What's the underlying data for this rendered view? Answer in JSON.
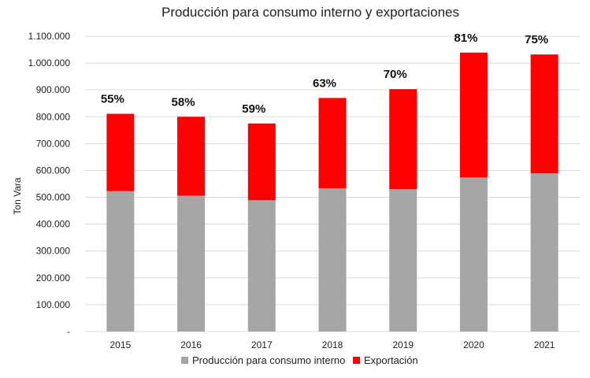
{
  "chart_data": {
    "type": "bar",
    "stacked": true,
    "title": "Producción para consumo interno y exportaciones",
    "xlabel": "",
    "ylabel": "Ton Vara",
    "categories": [
      "2015",
      "2016",
      "2017",
      "2018",
      "2019",
      "2020",
      "2021"
    ],
    "series": [
      {
        "name": "Producción para consumo interno",
        "color": "#a6a6a6",
        "values": [
          523000,
          506000,
          489000,
          534000,
          530000,
          574000,
          589000
        ]
      },
      {
        "name": "Exportación",
        "color": "#ff0000",
        "values": [
          288000,
          294000,
          286000,
          336000,
          373000,
          465000,
          443000
        ]
      }
    ],
    "bar_labels": [
      "55%",
      "58%",
      "59%",
      "63%",
      "70%",
      "81%",
      "75%"
    ],
    "ylim": [
      0,
      1100000
    ],
    "yticks": [
      0,
      100000,
      200000,
      300000,
      400000,
      500000,
      600000,
      700000,
      800000,
      900000,
      1000000,
      1100000
    ],
    "ytick_labels": [
      "-",
      "100.000",
      "200.000",
      "300.000",
      "400.000",
      "500.000",
      "600.000",
      "700.000",
      "800.000",
      "900.000",
      "1.000.000",
      "1.100.000"
    ],
    "grid": true,
    "legend": "bottom"
  }
}
